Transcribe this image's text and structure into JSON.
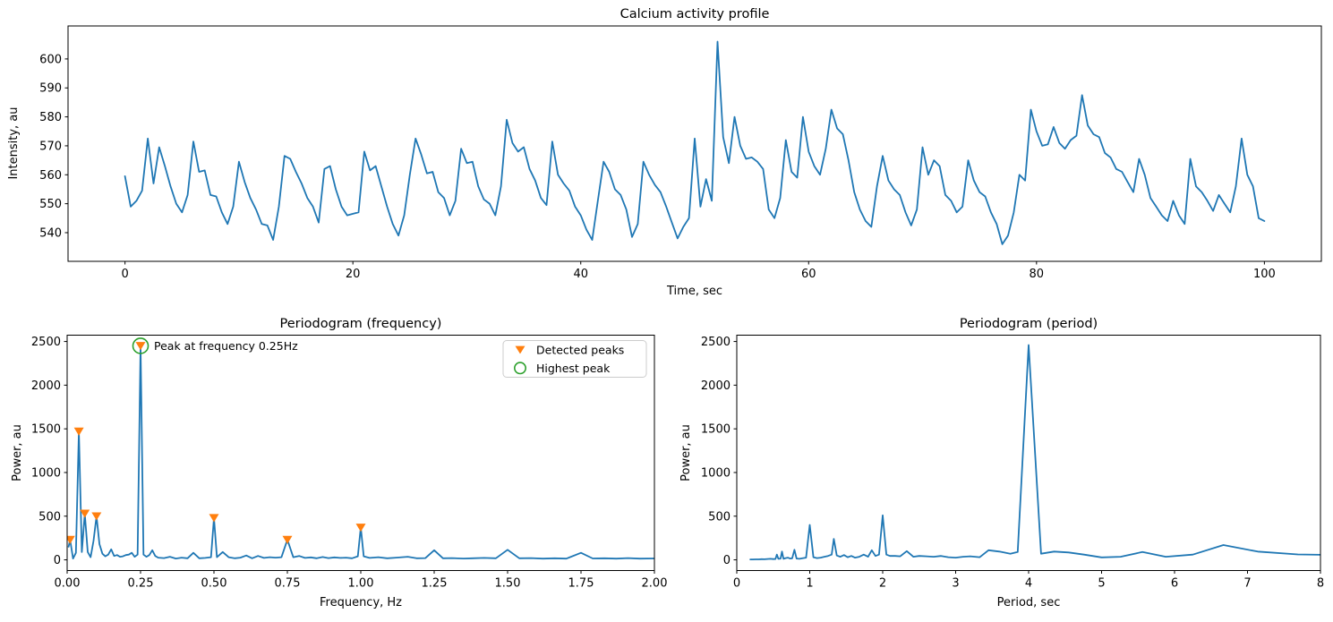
{
  "figure": {
    "line_color": "#1f77b4",
    "peak_marker_color": "#ff7f0e",
    "highest_peak_color": "#2ca02c",
    "spine_color": "#000000",
    "legend_edge_color": "#cccccc",
    "background": "#ffffff"
  },
  "chart_data": [
    {
      "id": "calcium",
      "type": "line",
      "title": "Calcium activity profile",
      "xlabel": "Time, sec",
      "ylabel": "Intensity, au",
      "xlim": [
        -5,
        105
      ],
      "ylim": [
        530.1,
        611.4
      ],
      "xticks": [
        0,
        20,
        40,
        60,
        80,
        100
      ],
      "xtick_labels": [
        "0",
        "20",
        "40",
        "60",
        "80",
        "100"
      ],
      "yticks": [
        540,
        550,
        560,
        570,
        580,
        590,
        600
      ],
      "ytick_labels": [
        "540",
        "550",
        "560",
        "570",
        "580",
        "590",
        "600"
      ],
      "x0": 0,
      "dx": 0.5,
      "y": [
        559.5,
        549,
        551,
        554.5,
        572.5,
        557,
        569.5,
        563,
        556,
        550,
        547,
        553,
        571.5,
        561,
        561.5,
        553,
        552.5,
        547,
        543,
        549,
        564.5,
        557.5,
        552,
        548,
        543,
        542.5,
        537.5,
        549,
        566.5,
        565.5,
        561,
        557,
        552,
        549,
        543.5,
        562,
        563,
        555,
        549,
        546,
        546.5,
        547,
        568,
        561.5,
        563,
        556,
        549,
        543,
        539,
        546,
        560,
        572.5,
        567,
        560.5,
        561,
        554,
        552,
        546,
        551,
        569,
        564,
        564.5,
        556,
        551.5,
        550,
        546,
        556,
        579,
        571,
        568,
        569.5,
        562,
        558,
        552,
        549.5,
        571.5,
        560,
        557,
        554.5,
        549,
        546,
        541,
        537.5,
        551,
        564.5,
        561,
        555,
        553,
        548,
        538.5,
        543,
        564.5,
        560,
        556.5,
        554,
        549,
        543.5,
        538,
        542,
        545,
        572.5,
        549,
        558.5,
        551,
        606,
        573,
        564,
        580,
        570,
        565.5,
        566,
        564.5,
        562,
        548,
        545,
        552,
        572,
        561,
        559,
        580,
        568,
        563,
        560,
        569,
        582.5,
        576,
        574,
        565,
        554,
        548,
        544,
        542,
        556,
        566.5,
        558,
        555,
        553,
        547,
        542.5,
        548,
        569.5,
        560,
        565,
        563,
        553,
        551,
        547,
        549,
        565,
        558,
        554,
        552.5,
        547,
        543,
        536,
        539,
        547,
        560,
        558,
        582.5,
        575,
        570,
        570.5,
        576.5,
        571,
        569,
        572,
        573.5,
        587.5,
        577,
        574,
        573,
        567.5,
        566,
        562,
        561,
        557.5,
        554,
        565.5,
        560,
        552,
        549,
        546,
        544,
        551,
        546,
        543,
        565.5,
        556,
        554,
        551,
        547.5,
        553,
        550,
        547,
        556,
        572.5,
        560,
        556,
        545,
        544
      ]
    },
    {
      "id": "periodogram_frequency",
      "type": "line",
      "title": "Periodogram (frequency)",
      "xlabel": "Frequency, Hz",
      "ylabel": "Power, au",
      "xlim": [
        0,
        2
      ],
      "ylim": [
        -122.5,
        2572.5
      ],
      "xticks": [
        0,
        0.25,
        0.5,
        0.75,
        1.0,
        1.25,
        1.5,
        1.75,
        2.0
      ],
      "xtick_labels": [
        "0.00",
        "0.25",
        "0.50",
        "0.75",
        "1.00",
        "1.25",
        "1.50",
        "1.75",
        "2.00"
      ],
      "yticks": [
        0,
        500,
        1000,
        1500,
        2000,
        2500
      ],
      "ytick_labels": [
        "0",
        "500",
        "1000",
        "1500",
        "2000",
        "2500"
      ],
      "x": [
        0.005,
        0.01,
        0.02,
        0.03,
        0.04,
        0.05,
        0.055,
        0.06,
        0.07,
        0.08,
        0.09,
        0.1,
        0.11,
        0.12,
        0.13,
        0.14,
        0.15,
        0.16,
        0.17,
        0.18,
        0.19,
        0.2,
        0.21,
        0.22,
        0.23,
        0.24,
        0.25,
        0.26,
        0.27,
        0.28,
        0.29,
        0.3,
        0.31,
        0.33,
        0.35,
        0.37,
        0.39,
        0.41,
        0.43,
        0.45,
        0.47,
        0.49,
        0.5,
        0.51,
        0.53,
        0.55,
        0.57,
        0.59,
        0.61,
        0.63,
        0.65,
        0.67,
        0.69,
        0.71,
        0.73,
        0.75,
        0.77,
        0.79,
        0.81,
        0.83,
        0.85,
        0.87,
        0.89,
        0.91,
        0.93,
        0.95,
        0.97,
        0.99,
        1.0,
        1.01,
        1.03,
        1.06,
        1.09,
        1.12,
        1.16,
        1.19,
        1.22,
        1.25,
        1.28,
        1.31,
        1.35,
        1.38,
        1.42,
        1.46,
        1.5,
        1.54,
        1.58,
        1.62,
        1.66,
        1.7,
        1.75,
        1.79,
        1.83,
        1.87,
        1.91,
        1.95,
        2.0
      ],
      "y": [
        150,
        230,
        15,
        80,
        1470,
        90,
        300,
        530,
        90,
        30,
        220,
        500,
        180,
        70,
        40,
        60,
        120,
        45,
        55,
        35,
        40,
        55,
        60,
        80,
        35,
        60,
        2450,
        60,
        35,
        55,
        110,
        45,
        25,
        20,
        35,
        15,
        25,
        18,
        80,
        18,
        22,
        30,
        480,
        30,
        90,
        30,
        18,
        25,
        50,
        18,
        45,
        22,
        30,
        25,
        30,
        230,
        30,
        45,
        22,
        28,
        18,
        32,
        20,
        28,
        22,
        25,
        18,
        40,
        370,
        40,
        22,
        30,
        18,
        25,
        35,
        18,
        20,
        110,
        18,
        20,
        15,
        18,
        22,
        18,
        115,
        18,
        20,
        14,
        18,
        14,
        80,
        16,
        18,
        14,
        20,
        14,
        16
      ],
      "detected_peaks": {
        "x": [
          0.01,
          0.04,
          0.06,
          0.1,
          0.25,
          0.5,
          0.75,
          1.0
        ],
        "y": [
          230,
          1470,
          530,
          500,
          2450,
          480,
          230,
          370
        ]
      },
      "highest_peak": {
        "x": 0.25,
        "y": 2450
      },
      "annotation": {
        "text": "Peak at frequency 0.25Hz",
        "x": 0.3,
        "y": 2430
      },
      "legend": [
        {
          "label": "Detected peaks",
          "marker": "triangle-down",
          "color": "#ff7f0e"
        },
        {
          "label": "Highest peak",
          "marker": "open-circle",
          "color": "#2ca02c"
        }
      ]
    },
    {
      "id": "periodogram_period",
      "type": "line",
      "title": "Periodogram (period)",
      "xlabel": "Period, sec",
      "ylabel": "Power, au",
      "xlim": [
        0,
        8
      ],
      "ylim": [
        -122.5,
        2572.5
      ],
      "xticks": [
        0,
        1,
        2,
        3,
        4,
        5,
        6,
        7,
        8
      ],
      "xtick_labels": [
        "0",
        "1",
        "2",
        "3",
        "4",
        "5",
        "6",
        "7",
        "8"
      ],
      "yticks": [
        0,
        500,
        1000,
        1500,
        2000,
        2500
      ],
      "ytick_labels": [
        "0",
        "500",
        "1000",
        "1500",
        "2000",
        "2500"
      ],
      "x": [
        0.185,
        0.22,
        0.26,
        0.3,
        0.34,
        0.38,
        0.42,
        0.46,
        0.5,
        0.53,
        0.55,
        0.57,
        0.6,
        0.62,
        0.64,
        0.67,
        0.7,
        0.73,
        0.76,
        0.79,
        0.82,
        0.86,
        0.9,
        0.95,
        1.0,
        1.05,
        1.1,
        1.15,
        1.2,
        1.25,
        1.3,
        1.33,
        1.37,
        1.42,
        1.47,
        1.52,
        1.57,
        1.62,
        1.68,
        1.74,
        1.8,
        1.85,
        1.9,
        1.95,
        2.0,
        2.05,
        2.1,
        2.17,
        2.24,
        2.33,
        2.42,
        2.5,
        2.6,
        2.7,
        2.8,
        2.9,
        3.0,
        3.1,
        3.2,
        3.33,
        3.45,
        3.6,
        3.75,
        3.85,
        4.0,
        4.17,
        4.35,
        4.55,
        4.76,
        5.0,
        5.26,
        5.56,
        5.88,
        6.25,
        6.67,
        7.14,
        7.69,
        8.0
      ],
      "y": [
        5,
        5,
        6,
        6,
        8,
        7,
        10,
        12,
        9,
        10,
        60,
        12,
        14,
        95,
        12,
        20,
        25,
        15,
        18,
        115,
        15,
        12,
        18,
        25,
        400,
        30,
        20,
        25,
        35,
        45,
        60,
        240,
        50,
        35,
        55,
        30,
        45,
        25,
        35,
        60,
        35,
        110,
        45,
        60,
        510,
        60,
        45,
        45,
        40,
        100,
        35,
        45,
        40,
        35,
        45,
        30,
        25,
        35,
        40,
        30,
        110,
        95,
        70,
        90,
        2460,
        70,
        95,
        85,
        60,
        28,
        35,
        90,
        35,
        60,
        170,
        95,
        62,
        58
      ]
    }
  ]
}
